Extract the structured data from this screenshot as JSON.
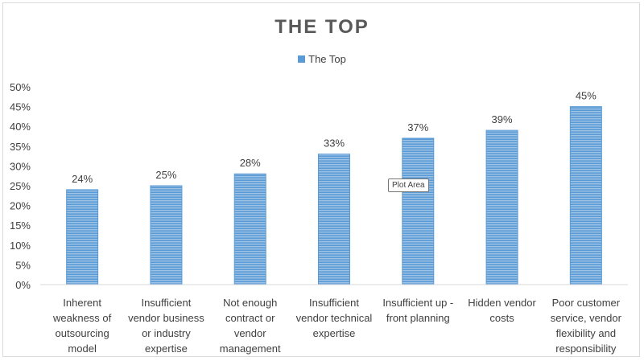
{
  "chart_data": {
    "type": "bar",
    "title": "THE TOP",
    "categories": [
      "Inherent weakness of outsourcing model",
      "Insufficient vendor business or industry expertise",
      "Not enough contract or vendor management",
      "Insufficient vendor technical expertise",
      "Insufficient up - front planning",
      "Hidden vendor costs",
      "Poor customer service, vendor flexibility and responsibility"
    ],
    "category_lines": [
      [
        "Inherent",
        "weakness of",
        "outsourcing",
        "model"
      ],
      [
        "Insufficient",
        "vendor business",
        "or industry",
        "expertise"
      ],
      [
        "Not enough",
        "contract or",
        "vendor",
        "management"
      ],
      [
        "Insufficient",
        "vendor technical",
        "expertise"
      ],
      [
        "Insufficient up -",
        "front planning"
      ],
      [
        "Hidden vendor",
        "costs"
      ],
      [
        "Poor customer",
        "service, vendor",
        "flexibility and",
        "responsibility"
      ]
    ],
    "series": [
      {
        "name": "The Top",
        "values": [
          24,
          25,
          28,
          33,
          37,
          39,
          45
        ]
      }
    ],
    "data_labels": [
      "24%",
      "25%",
      "28%",
      "33%",
      "37%",
      "39%",
      "45%"
    ],
    "ylim": [
      0,
      50
    ],
    "yticks": [
      "0%",
      "5%",
      "10%",
      "15%",
      "20%",
      "25%",
      "30%",
      "35%",
      "40%",
      "45%",
      "50%"
    ],
    "xlabel": "",
    "ylabel": "",
    "grid": false,
    "legend_position": "top",
    "colors": {
      "bar": "#5b9bd5",
      "stripe": "#9dc3e6",
      "axis": "#d9d9d9"
    }
  },
  "tooltip": {
    "text": "Plot Area"
  }
}
